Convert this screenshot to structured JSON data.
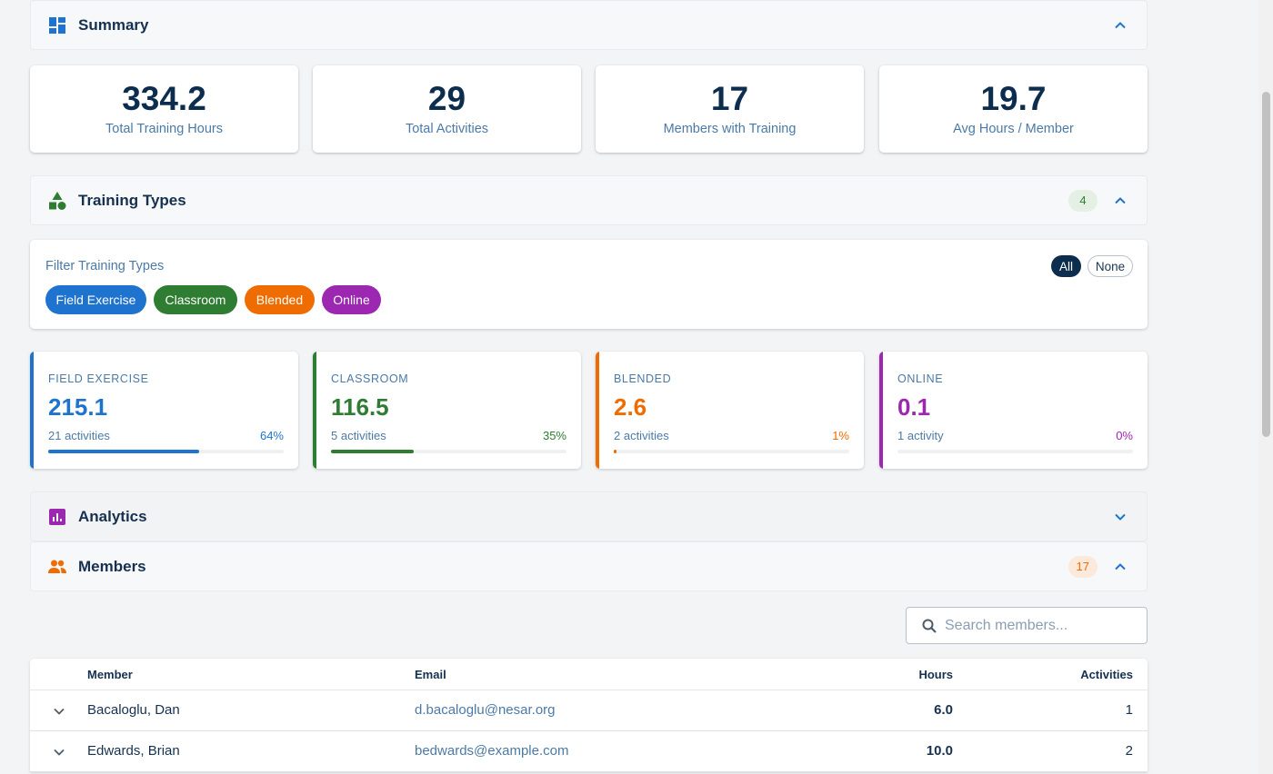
{
  "sections": {
    "summary": {
      "title": "Summary"
    },
    "training_types": {
      "title": "Training Types",
      "count": "4"
    },
    "analytics": {
      "title": "Analytics"
    },
    "members": {
      "title": "Members",
      "count": "17"
    }
  },
  "stats": [
    {
      "value": "334.2",
      "label": "Total Training Hours"
    },
    {
      "value": "29",
      "label": "Total Activities"
    },
    {
      "value": "17",
      "label": "Members with Training"
    },
    {
      "value": "19.7",
      "label": "Avg Hours / Member"
    }
  ],
  "filter": {
    "title": "Filter Training Types",
    "all_label": "All",
    "none_label": "None",
    "chips": [
      {
        "label": "Field Exercise",
        "color": "#1e73cf"
      },
      {
        "label": "Classroom",
        "color": "#2e7d32"
      },
      {
        "label": "Blended",
        "color": "#ef6c00"
      },
      {
        "label": "Online",
        "color": "#9c27b0"
      }
    ]
  },
  "type_cards": [
    {
      "name": "FIELD EXERCISE",
      "hours": "215.1",
      "activities": "21 activities",
      "percent": "64%",
      "share": 0.64,
      "color": "#1e73cf"
    },
    {
      "name": "CLASSROOM",
      "hours": "116.5",
      "activities": "5 activities",
      "percent": "35%",
      "share": 0.35,
      "color": "#2e7d32"
    },
    {
      "name": "BLENDED",
      "hours": "2.6",
      "activities": "2 activities",
      "percent": "1%",
      "share": 0.01,
      "color": "#ef6c00"
    },
    {
      "name": "ONLINE",
      "hours": "0.1",
      "activities": "1 activity",
      "percent": "0%",
      "share": 0.0,
      "color": "#9c27b0"
    }
  ],
  "search": {
    "placeholder": "Search members..."
  },
  "table": {
    "headers": {
      "member": "Member",
      "email": "Email",
      "hours": "Hours",
      "activities": "Activities"
    },
    "rows": [
      {
        "member": "Bacaloglu, Dan",
        "email": "d.bacaloglu@nesar.org",
        "hours": "6.0",
        "activities": "1"
      },
      {
        "member": "Edwards, Brian",
        "email": "bedwards@example.com",
        "hours": "10.0",
        "activities": "2"
      }
    ]
  }
}
